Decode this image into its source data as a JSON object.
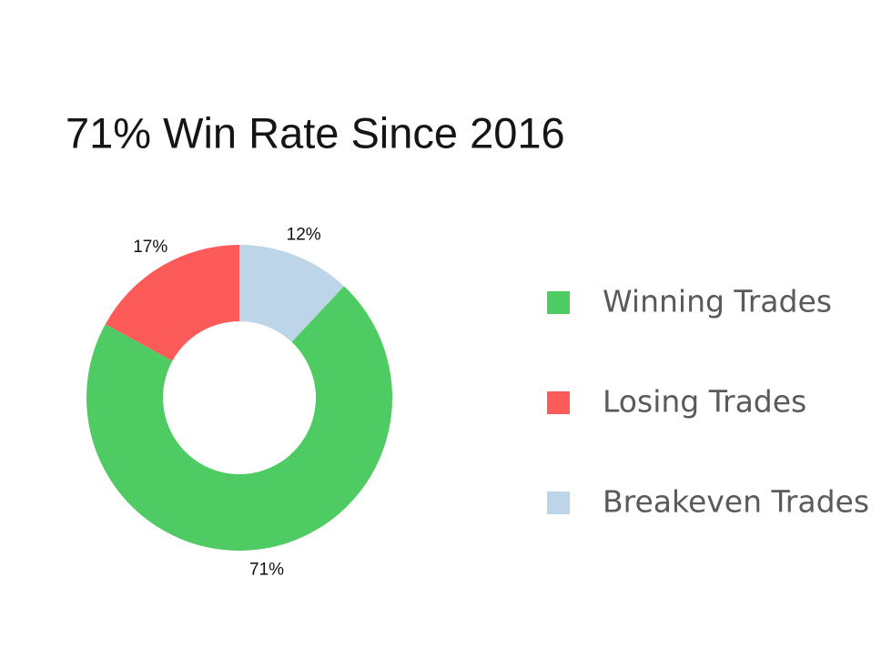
{
  "chart_data": {
    "type": "donut",
    "title": "71% Win Rate Since 2016",
    "categories": [
      "Winning Trades",
      "Losing Trades",
      "Breakeven Trades"
    ],
    "values": [
      71,
      17,
      12
    ],
    "value_labels": [
      "71%",
      "17%",
      "12%"
    ],
    "colors": [
      "#4ecb62",
      "#fd5a5a",
      "#bcd5e8"
    ],
    "legend": "right"
  }
}
